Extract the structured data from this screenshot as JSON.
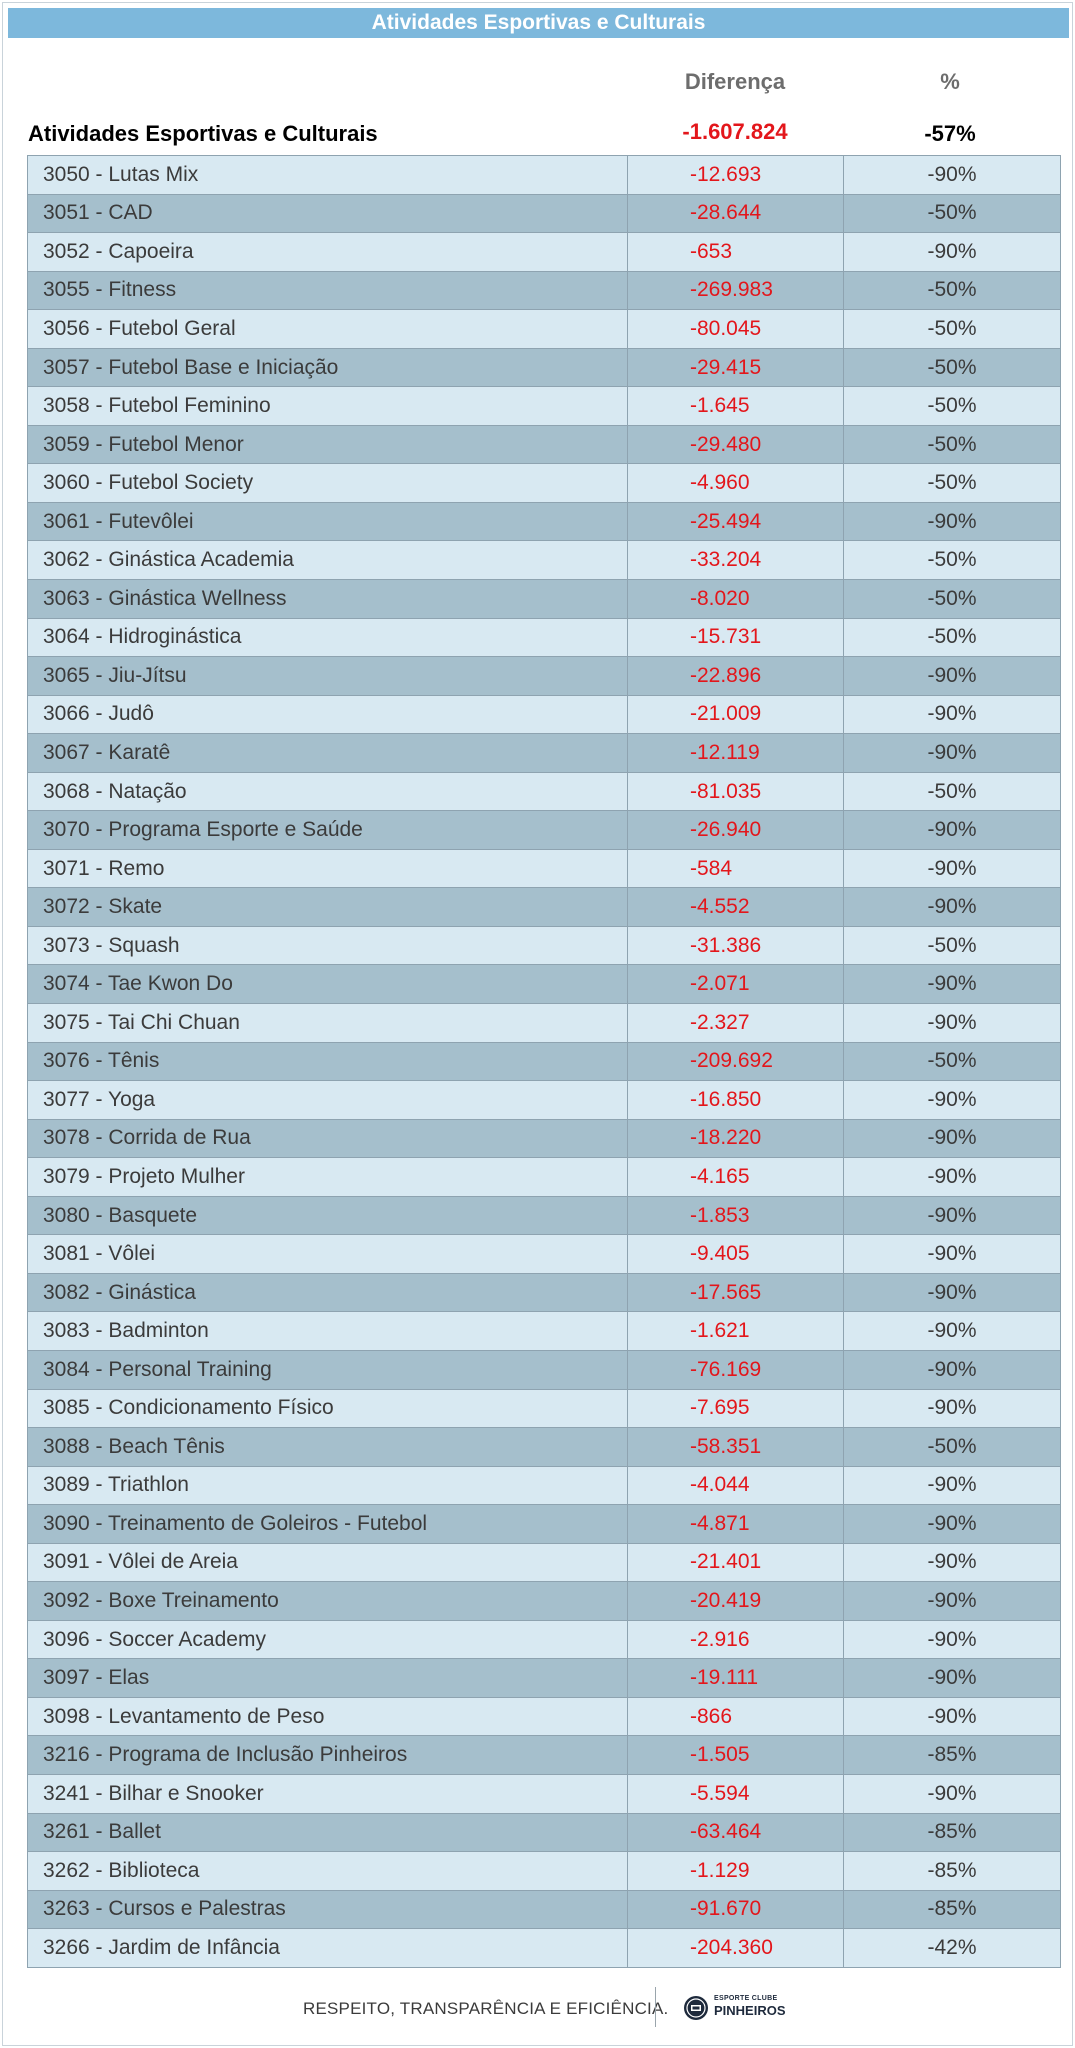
{
  "banner": {
    "title": "Atividades Esportivas e Culturais"
  },
  "columns": {
    "diff": "Diferença",
    "pct": "%"
  },
  "summary": {
    "label": "Atividades Esportivas e Culturais",
    "diff": "-1.607.824",
    "pct": "-57%"
  },
  "rows": [
    {
      "name": "3050 - Lutas Mix",
      "diff": "-12.693",
      "pct": "-90%"
    },
    {
      "name": "3051 - CAD",
      "diff": "-28.644",
      "pct": "-50%"
    },
    {
      "name": "3052 - Capoeira",
      "diff": "-653",
      "pct": "-90%"
    },
    {
      "name": "3055 - Fitness",
      "diff": "-269.983",
      "pct": "-50%"
    },
    {
      "name": "3056 - Futebol Geral",
      "diff": "-80.045",
      "pct": "-50%"
    },
    {
      "name": "3057 - Futebol Base e Iniciação",
      "diff": "-29.415",
      "pct": "-50%"
    },
    {
      "name": "3058 - Futebol Feminino",
      "diff": "-1.645",
      "pct": "-50%"
    },
    {
      "name": "3059 - Futebol Menor",
      "diff": "-29.480",
      "pct": "-50%"
    },
    {
      "name": "3060 - Futebol Society",
      "diff": "-4.960",
      "pct": "-50%"
    },
    {
      "name": "3061 - Futevôlei",
      "diff": "-25.494",
      "pct": "-90%"
    },
    {
      "name": "3062 - Ginástica Academia",
      "diff": "-33.204",
      "pct": "-50%"
    },
    {
      "name": "3063 - Ginástica Wellness",
      "diff": "-8.020",
      "pct": "-50%"
    },
    {
      "name": "3064 - Hidroginástica",
      "diff": "-15.731",
      "pct": "-50%"
    },
    {
      "name": "3065 - Jiu-Jítsu",
      "diff": "-22.896",
      "pct": "-90%"
    },
    {
      "name": "3066 - Judô",
      "diff": "-21.009",
      "pct": "-90%"
    },
    {
      "name": "3067 - Karatê",
      "diff": "-12.119",
      "pct": "-90%"
    },
    {
      "name": "3068 - Natação",
      "diff": "-81.035",
      "pct": "-50%"
    },
    {
      "name": "3070 - Programa Esporte e Saúde",
      "diff": "-26.940",
      "pct": "-90%"
    },
    {
      "name": "3071 - Remo",
      "diff": "-584",
      "pct": "-90%"
    },
    {
      "name": "3072 - Skate",
      "diff": "-4.552",
      "pct": "-90%"
    },
    {
      "name": "3073 - Squash",
      "diff": "-31.386",
      "pct": "-50%"
    },
    {
      "name": "3074 - Tae Kwon Do",
      "diff": "-2.071",
      "pct": "-90%"
    },
    {
      "name": "3075 - Tai Chi Chuan",
      "diff": "-2.327",
      "pct": "-90%"
    },
    {
      "name": "3076 - Tênis",
      "diff": "-209.692",
      "pct": "-50%"
    },
    {
      "name": "3077 - Yoga",
      "diff": "-16.850",
      "pct": "-90%"
    },
    {
      "name": "3078 - Corrida de Rua",
      "diff": "-18.220",
      "pct": "-90%"
    },
    {
      "name": "3079 - Projeto Mulher",
      "diff": "-4.165",
      "pct": "-90%"
    },
    {
      "name": "3080 - Basquete",
      "diff": "-1.853",
      "pct": "-90%"
    },
    {
      "name": "3081 - Vôlei",
      "diff": "-9.405",
      "pct": "-90%"
    },
    {
      "name": "3082 - Ginástica",
      "diff": "-17.565",
      "pct": "-90%"
    },
    {
      "name": "3083 - Badminton",
      "diff": "-1.621",
      "pct": "-90%"
    },
    {
      "name": "3084 - Personal Training",
      "diff": "-76.169",
      "pct": "-90%"
    },
    {
      "name": "3085 - Condicionamento Físico",
      "diff": "-7.695",
      "pct": "-90%"
    },
    {
      "name": "3088 - Beach Tênis",
      "diff": "-58.351",
      "pct": "-50%"
    },
    {
      "name": "3089 - Triathlon",
      "diff": "-4.044",
      "pct": "-90%"
    },
    {
      "name": "3090 - Treinamento de Goleiros - Futebol",
      "diff": "-4.871",
      "pct": "-90%"
    },
    {
      "name": "3091 - Vôlei de Areia",
      "diff": "-21.401",
      "pct": "-90%"
    },
    {
      "name": "3092 - Boxe Treinamento",
      "diff": "-20.419",
      "pct": "-90%"
    },
    {
      "name": "3096 - Soccer Academy",
      "diff": "-2.916",
      "pct": "-90%"
    },
    {
      "name": "3097 - Elas",
      "diff": "-19.111",
      "pct": "-90%"
    },
    {
      "name": "3098 - Levantamento de Peso",
      "diff": "-866",
      "pct": "-90%"
    },
    {
      "name": "3216 - Programa de Inclusão Pinheiros",
      "diff": "-1.505",
      "pct": "-85%"
    },
    {
      "name": "3241 - Bilhar e Snooker",
      "diff": "-5.594",
      "pct": "-90%"
    },
    {
      "name": "3261 - Ballet",
      "diff": "-63.464",
      "pct": "-85%"
    },
    {
      "name": "3262 - Biblioteca",
      "diff": "-1.129",
      "pct": "-85%"
    },
    {
      "name": "3263 - Cursos e Palestras",
      "diff": "-91.670",
      "pct": "-85%"
    },
    {
      "name": "3266 - Jardim de Infância",
      "diff": "-204.360",
      "pct": "-42%"
    }
  ],
  "footer": {
    "slogan": "RESPEITO, TRANSPARÊNCIA E EFICIÊNCIA.",
    "brand_top": "ESPORTE CLUBE",
    "brand_bottom": "PINHEIROS",
    "logo_icon": "club-crest-icon"
  },
  "colors": {
    "banner": "#7db8dc",
    "row_light": "#d8e9f2",
    "row_dark": "#a5bfcc",
    "negative": "#e3161b"
  }
}
